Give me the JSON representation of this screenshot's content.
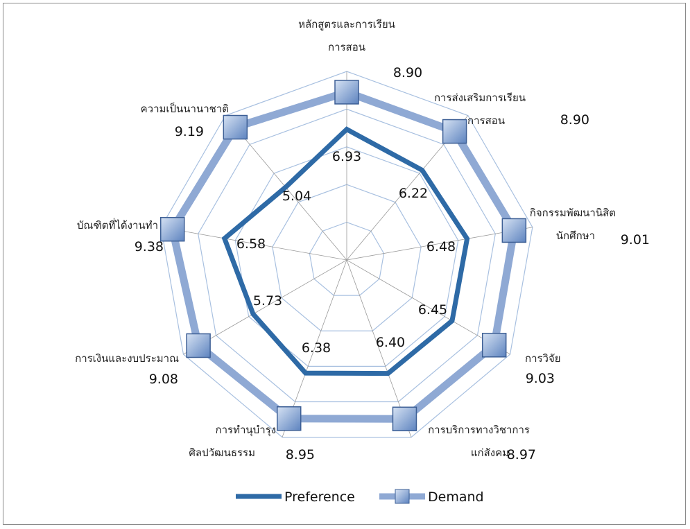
{
  "chart_data": {
    "type": "radar",
    "categories": [
      [
        "หลักสูตรและการเรียน",
        "การสอน"
      ],
      [
        "การส่งเสริมการเรียน",
        "การสอน"
      ],
      [
        "กิจกรรมพัฒนานิสิต",
        "นักศึกษา"
      ],
      [
        "การวิจัย"
      ],
      [
        "การบริการทางวิชาการ",
        "แก่สังคม"
      ],
      [
        "การทำนุบำรุง",
        "ศิลปวัฒนธรรม"
      ],
      [
        "การเงินและงบประมาณ"
      ],
      [
        "บัณฑิตที่ได้งานทำ"
      ],
      [
        "ความเป็นนานาชาติ"
      ]
    ],
    "series": [
      {
        "name": "Preference",
        "values": [
          6.93,
          6.22,
          6.48,
          6.45,
          6.4,
          6.38,
          5.73,
          6.58,
          5.04
        ],
        "color": "#2e6aa6"
      },
      {
        "name": "Demand",
        "values": [
          8.9,
          8.9,
          9.01,
          9.03,
          8.97,
          8.95,
          9.08,
          9.38,
          9.19
        ],
        "color": "#8fa9d4"
      }
    ],
    "rlim": [
      0,
      10
    ],
    "grid": true,
    "legend_position": "bottom"
  }
}
